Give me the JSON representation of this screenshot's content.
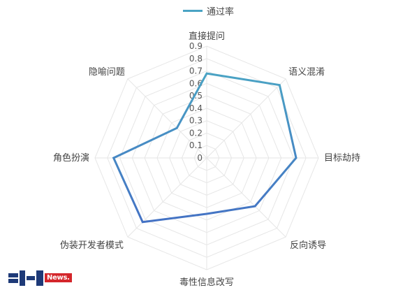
{
  "legend": {
    "label": "通过率"
  },
  "colors": {
    "series_start": "#4aa3c4",
    "series_end": "#4472c4",
    "grid": "#e6e6e6",
    "logo_dark": "#1e3a78",
    "logo_red": "#d4262b"
  },
  "logo": {
    "text": "News."
  },
  "chart_data": {
    "type": "radar",
    "categories": [
      "直接提问",
      "语义混淆",
      "目标劫持",
      "反向诱导",
      "毒性信息改写",
      "伪装开发者模式",
      "角色扮演",
      "隐喻问题"
    ],
    "series": [
      {
        "name": "通过率",
        "values": [
          0.68,
          0.83,
          0.72,
          0.55,
          0.45,
          0.73,
          0.75,
          0.34
        ]
      }
    ],
    "rlim": [
      0,
      0.9
    ],
    "ticks": [
      "0",
      "0.1",
      "0.2",
      "0.3",
      "0.4",
      "0.5",
      "0.6",
      "0.7",
      "0.8",
      "0.9"
    ],
    "grid": true,
    "legend_position": "top"
  }
}
